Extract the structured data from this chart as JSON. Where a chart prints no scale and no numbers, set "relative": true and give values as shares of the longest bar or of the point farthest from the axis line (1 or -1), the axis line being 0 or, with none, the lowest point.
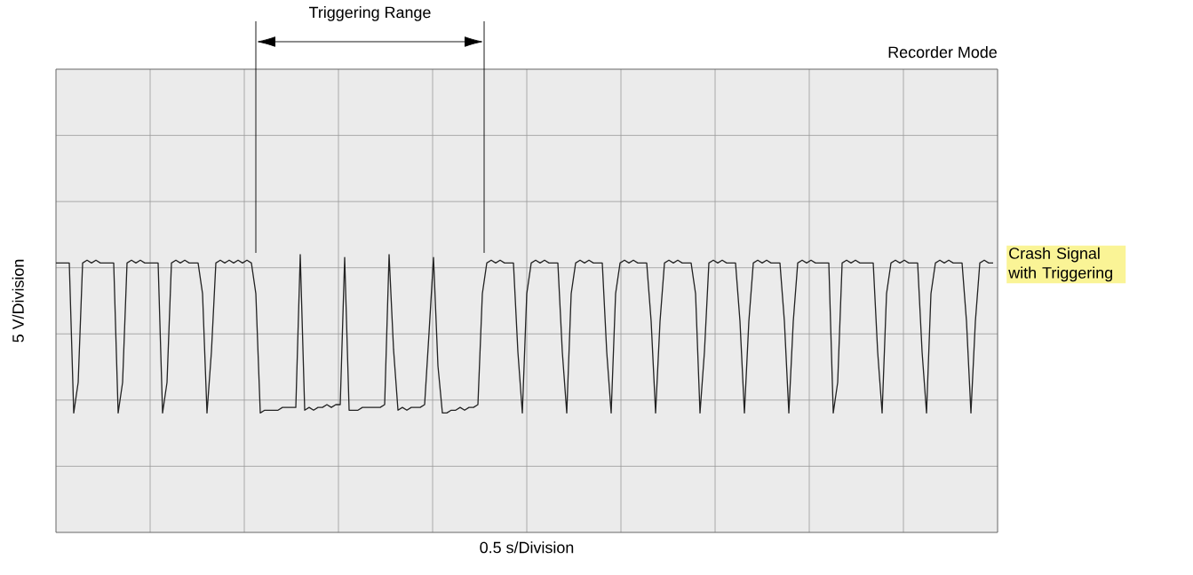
{
  "chart_data": {
    "type": "line",
    "relative": true,
    "grid": true,
    "xlabel": "0.5 s/Division",
    "ylabel": "5 V/Division",
    "annotations": [
      "Triggering Range",
      "Recorder Mode",
      "Crash Signal with Triggering"
    ],
    "categories": [
      null,
      null,
      null,
      null,
      null,
      null,
      null,
      null,
      null,
      null,
      null,
      null,
      null,
      null,
      null,
      null,
      null,
      null,
      null,
      null,
      null,
      null,
      null,
      null,
      null,
      null,
      null,
      null,
      null,
      null,
      null,
      null,
      null,
      null,
      null,
      null,
      null,
      null,
      null,
      null,
      null,
      null,
      null,
      null,
      null,
      null,
      null,
      null,
      null,
      null,
      null,
      null,
      null,
      null,
      null,
      null,
      null,
      null,
      null,
      null,
      null,
      null,
      null,
      null,
      null,
      null,
      null,
      null,
      null,
      null,
      null,
      null,
      null,
      null,
      null,
      null,
      null,
      null,
      null,
      null,
      null,
      null,
      null,
      null,
      null,
      null,
      null,
      null,
      null,
      null,
      null,
      null,
      null,
      null,
      null,
      null,
      null,
      null,
      null,
      null,
      null,
      null,
      null,
      null,
      null,
      null,
      null,
      null,
      null,
      null,
      null,
      null,
      null,
      null,
      null,
      null,
      null,
      null,
      null,
      null,
      null,
      null,
      null,
      null,
      null,
      null,
      null,
      null,
      null,
      null,
      null,
      null,
      null,
      null,
      null,
      null,
      null,
      null,
      null,
      null,
      null,
      null,
      null,
      null,
      null,
      null,
      null,
      null,
      null,
      null,
      null,
      null,
      null,
      null,
      null,
      null,
      null,
      null,
      null,
      null,
      null,
      null,
      null,
      null,
      null,
      null,
      null,
      null,
      null,
      null,
      null,
      null,
      null,
      null,
      null,
      null,
      null,
      null,
      null,
      null,
      null,
      null,
      null,
      null,
      null,
      null,
      null,
      null,
      null,
      null,
      null,
      null,
      null,
      null,
      null,
      null,
      null,
      null,
      null,
      null,
      null,
      null,
      null,
      null,
      null,
      null,
      null,
      null,
      null,
      null,
      null,
      null
    ],
    "series": [
      {
        "color": "#222222",
        "values": [
          0.97,
          0.97,
          0.97,
          0.97,
          0.43,
          0.54,
          0.97,
          0.98,
          0.97,
          0.98,
          0.97,
          0.97,
          0.97,
          0.97,
          0.43,
          0.54,
          0.97,
          0.98,
          0.97,
          0.98,
          0.97,
          0.97,
          0.97,
          0.97,
          0.43,
          0.54,
          0.97,
          0.98,
          0.97,
          0.98,
          0.97,
          0.97,
          0.97,
          0.86,
          0.43,
          0.65,
          0.97,
          0.98,
          0.97,
          0.98,
          0.97,
          0.98,
          0.97,
          0.98,
          0.97,
          0.86,
          0.43,
          0.44,
          0.44,
          0.44,
          0.44,
          0.45,
          0.45,
          0.45,
          0.45,
          1.0,
          0.44,
          0.45,
          0.44,
          0.45,
          0.45,
          0.46,
          0.45,
          0.46,
          0.46,
          0.99,
          0.44,
          0.44,
          0.44,
          0.45,
          0.45,
          0.45,
          0.45,
          0.45,
          0.46,
          1.0,
          0.66,
          0.44,
          0.45,
          0.44,
          0.45,
          0.45,
          0.45,
          0.46,
          0.72,
          0.99,
          0.6,
          0.43,
          0.43,
          0.44,
          0.44,
          0.45,
          0.44,
          0.45,
          0.45,
          0.46,
          0.86,
          0.97,
          0.98,
          0.97,
          0.98,
          0.97,
          0.97,
          0.97,
          0.65,
          0.43,
          0.86,
          0.97,
          0.98,
          0.97,
          0.98,
          0.97,
          0.97,
          0.97,
          0.65,
          0.43,
          0.86,
          0.97,
          0.98,
          0.97,
          0.98,
          0.97,
          0.97,
          0.97,
          0.65,
          0.43,
          0.86,
          0.97,
          0.98,
          0.97,
          0.98,
          0.97,
          0.97,
          0.97,
          0.76,
          0.43,
          0.76,
          0.97,
          0.98,
          0.97,
          0.98,
          0.97,
          0.97,
          0.97,
          0.86,
          0.43,
          0.65,
          0.97,
          0.98,
          0.97,
          0.98,
          0.97,
          0.97,
          0.97,
          0.76,
          0.43,
          0.76,
          0.97,
          0.98,
          0.97,
          0.98,
          0.97,
          0.97,
          0.97,
          0.76,
          0.43,
          0.76,
          0.97,
          0.98,
          0.97,
          0.98,
          0.97,
          0.97,
          0.97,
          0.97,
          0.43,
          0.54,
          0.97,
          0.98,
          0.97,
          0.98,
          0.97,
          0.97,
          0.97,
          0.97,
          0.65,
          0.43,
          0.86,
          0.97,
          0.98,
          0.97,
          0.98,
          0.97,
          0.97,
          0.97,
          0.65,
          0.43,
          0.86,
          0.97,
          0.98,
          0.97,
          0.98,
          0.97,
          0.97,
          0.97,
          0.76,
          0.43,
          0.76,
          0.97,
          0.98,
          0.97,
          0.97
        ]
      }
    ]
  }
}
